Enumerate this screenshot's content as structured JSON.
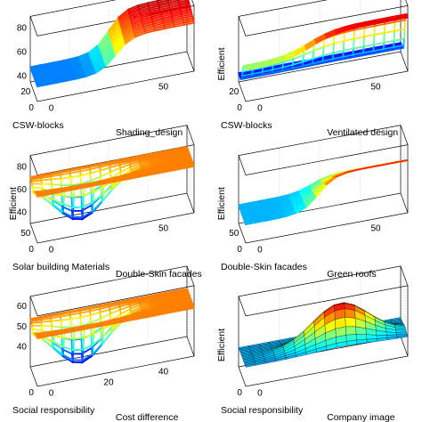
{
  "chart_data": [
    {
      "type": "surface",
      "zlabel": "",
      "xlabel": "CSW-blocks",
      "ylabel": "Shading_design",
      "z_ticks": [
        40,
        60,
        80
      ],
      "x_ticks": [
        20,
        0
      ],
      "y_ticks": [
        0,
        50
      ],
      "x_range": [
        0,
        30
      ],
      "y_range": [
        0,
        100
      ],
      "z_range": [
        35,
        90
      ],
      "surface_shape": "plateau"
    },
    {
      "type": "surface",
      "zlabel": "Efficient",
      "xlabel": "CSW-blocks",
      "ylabel": "Ventilated design",
      "z_ticks": [],
      "x_ticks": [
        20,
        0
      ],
      "y_ticks": [
        0,
        50
      ],
      "x_range": [
        0,
        30
      ],
      "y_range": [
        0,
        100
      ],
      "z_range": [
        35,
        90
      ],
      "surface_shape": "step"
    },
    {
      "type": "surface",
      "zlabel": "Efficient",
      "xlabel": "Solar building Materials",
      "ylabel": "Double-Skin facades",
      "z_ticks": [
        40,
        60,
        80
      ],
      "x_ticks": [
        50,
        0
      ],
      "y_ticks": [
        0,
        50
      ],
      "x_range": [
        0,
        100
      ],
      "y_range": [
        0,
        100
      ],
      "z_range": [
        30,
        90
      ],
      "surface_shape": "valley"
    },
    {
      "type": "surface",
      "zlabel": "Efficient",
      "xlabel": "Double-Skin facades",
      "ylabel": "Green roofs",
      "z_ticks": [],
      "x_ticks": [
        50,
        0
      ],
      "y_ticks": [
        0,
        50
      ],
      "x_range": [
        0,
        100
      ],
      "y_range": [
        0,
        100
      ],
      "z_range": [
        30,
        90
      ],
      "surface_shape": "cliff"
    },
    {
      "type": "surface",
      "zlabel": "",
      "xlabel": "Social responsibility",
      "ylabel": "Cost difference",
      "z_ticks": [
        40,
        50,
        60
      ],
      "x_ticks": [
        0
      ],
      "y_ticks": [
        0,
        20,
        40
      ],
      "x_range": [
        0,
        100
      ],
      "y_range": [
        0,
        50
      ],
      "z_range": [
        30,
        65
      ],
      "surface_shape": "valley"
    },
    {
      "type": "surface",
      "zlabel": "Efficient",
      "xlabel": "Social responsibility",
      "ylabel": "Company image",
      "z_ticks": [],
      "x_ticks": [
        0
      ],
      "y_ticks": [
        0
      ],
      "x_range": [
        0,
        100
      ],
      "y_range": [
        0,
        100
      ],
      "z_range": [
        30,
        90
      ],
      "surface_shape": "peak"
    }
  ]
}
